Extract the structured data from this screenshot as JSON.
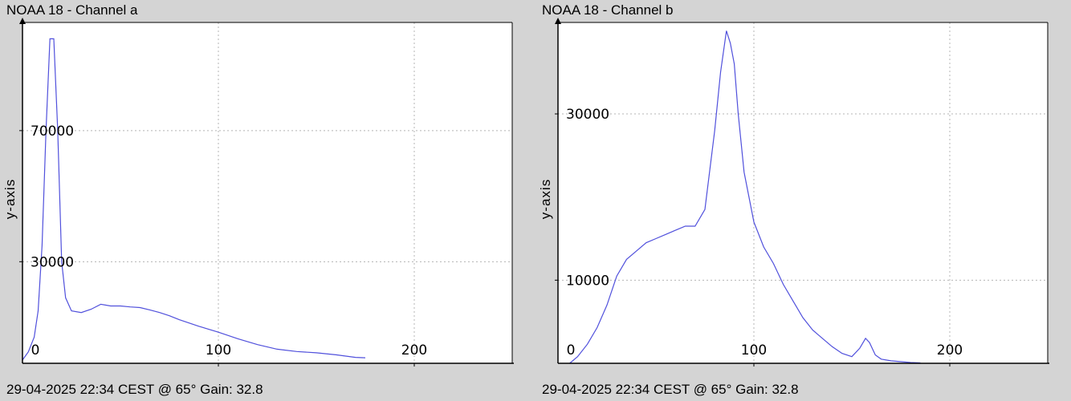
{
  "charts": [
    {
      "id": "a",
      "title": "NOAA 18 - Channel a",
      "caption": "29-04-2025 22:34 CEST @ 65° Gain: 32.8",
      "ylabel": "y-axis"
    },
    {
      "id": "b",
      "title": "NOAA 18 - Channel b",
      "caption": "29-04-2025 22:34 CEST @ 65° Gain: 32.8",
      "ylabel": "y-axis"
    }
  ],
  "chart_data": [
    {
      "type": "line",
      "title": "NOAA 18 - Channel a",
      "xlabel": "",
      "ylabel": "y-axis",
      "xlim": [
        0,
        250
      ],
      "ylim": [
        -1000,
        103000
      ],
      "x_ticks": [
        0,
        100,
        200
      ],
      "y_ticks": [
        0,
        30000,
        70000
      ],
      "grid": true,
      "line_color": "#5050dc",
      "x": [
        0,
        3,
        6,
        8,
        10,
        12,
        14,
        16,
        18,
        20,
        22,
        25,
        30,
        35,
        40,
        45,
        50,
        55,
        60,
        65,
        70,
        75,
        80,
        90,
        100,
        110,
        120,
        130,
        140,
        150,
        160,
        170,
        175
      ],
      "y": [
        0,
        2500,
        7000,
        15000,
        35000,
        70000,
        98000,
        98000,
        70000,
        30000,
        19000,
        15000,
        14500,
        15500,
        17000,
        16500,
        16500,
        16200,
        16000,
        15300,
        14500,
        13500,
        12300,
        10300,
        8500,
        6500,
        4700,
        3300,
        2600,
        2200,
        1600,
        800,
        700
      ]
    },
    {
      "type": "line",
      "title": "NOAA 18 - Channel b",
      "xlabel": "",
      "ylabel": "y-axis",
      "xlim": [
        0,
        250
      ],
      "ylim": [
        0,
        41000
      ],
      "x_ticks": [
        0,
        100,
        200
      ],
      "y_ticks": [
        0,
        10000,
        30000
      ],
      "grid": true,
      "line_color": "#5050dc",
      "x": [
        6,
        10,
        15,
        20,
        25,
        30,
        35,
        40,
        45,
        50,
        55,
        60,
        65,
        70,
        75,
        80,
        83,
        86,
        88,
        90,
        92,
        95,
        100,
        105,
        110,
        115,
        120,
        125,
        130,
        135,
        140,
        145,
        150,
        154,
        157,
        159,
        162,
        165,
        170,
        180,
        185
      ],
      "y": [
        0,
        800,
        2300,
        4300,
        7000,
        10500,
        12500,
        13500,
        14500,
        15000,
        15500,
        16000,
        16500,
        16500,
        18500,
        28000,
        35000,
        40000,
        38500,
        36000,
        30000,
        23000,
        17000,
        14000,
        12000,
        9500,
        7500,
        5500,
        4000,
        3000,
        2000,
        1200,
        800,
        1800,
        3000,
        2500,
        1000,
        500,
        300,
        100,
        50
      ]
    }
  ]
}
